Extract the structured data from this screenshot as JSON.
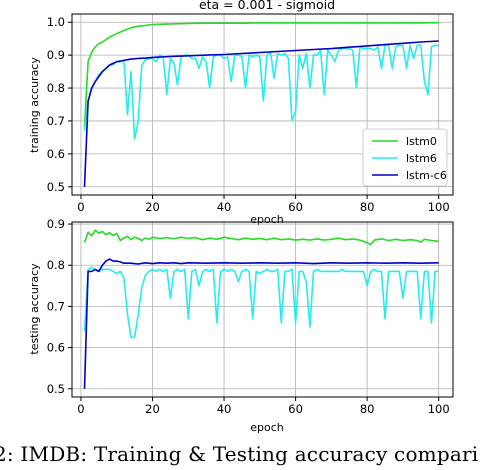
{
  "caption": "2: IMDB: Training & Testing accuracy compari",
  "chart_data": [
    {
      "type": "line",
      "title": "eta = 0.001 - sigmoid",
      "xlabel": "epoch",
      "ylabel": "training accuracy",
      "xlim": [
        -2.5,
        104
      ],
      "ylim": [
        0.475,
        1.025
      ],
      "xticks": [
        0,
        20,
        40,
        60,
        80,
        100
      ],
      "yticks": [
        0.5,
        0.6,
        0.7,
        0.8,
        0.9,
        1.0
      ],
      "ytick_labels": [
        "0.5",
        "0.6",
        "0.7",
        "0.8",
        "0.9",
        "1.0"
      ],
      "grid": true,
      "legend": "lower-right",
      "series": [
        {
          "name": "lstm0",
          "color": "#22dd22",
          "x": [
            1,
            2,
            3,
            4,
            5,
            6,
            8,
            10,
            12,
            14,
            16,
            18,
            20,
            25,
            30,
            35,
            40,
            45,
            50,
            55,
            60,
            65,
            70,
            75,
            80,
            85,
            90,
            95,
            100
          ],
          "y": [
            0.68,
            0.88,
            0.91,
            0.925,
            0.935,
            0.94,
            0.955,
            0.965,
            0.975,
            0.983,
            0.988,
            0.99,
            0.993,
            0.995,
            0.996,
            0.997,
            0.997,
            0.997,
            0.998,
            0.998,
            0.998,
            0.998,
            0.998,
            0.998,
            0.998,
            0.998,
            0.998,
            0.998,
            0.999
          ]
        },
        {
          "name": "lstm6",
          "color": "#22eeee",
          "x": [
            1,
            2,
            3,
            4,
            5,
            6,
            7,
            8,
            9,
            10,
            11,
            12,
            13,
            14,
            15,
            16,
            17,
            18,
            19,
            20,
            21,
            22,
            23,
            24,
            25,
            26,
            27,
            28,
            29,
            30,
            31,
            32,
            33,
            34,
            35,
            36,
            37,
            38,
            39,
            40,
            41,
            42,
            43,
            44,
            45,
            46,
            47,
            48,
            49,
            50,
            51,
            52,
            53,
            54,
            55,
            56,
            57,
            58,
            59,
            60,
            61,
            62,
            63,
            64,
            65,
            66,
            67,
            68,
            69,
            70,
            71,
            72,
            73,
            74,
            75,
            76,
            77,
            78,
            79,
            80,
            81,
            82,
            83,
            84,
            85,
            86,
            87,
            88,
            89,
            90,
            91,
            92,
            93,
            94,
            95,
            96,
            97,
            98,
            99,
            100
          ],
          "y": [
            0.67,
            0.76,
            0.8,
            0.82,
            0.84,
            0.85,
            0.86,
            0.87,
            0.87,
            0.88,
            0.88,
            0.885,
            0.72,
            0.85,
            0.645,
            0.7,
            0.87,
            0.885,
            0.89,
            0.89,
            0.88,
            0.9,
            0.895,
            0.78,
            0.89,
            0.875,
            0.81,
            0.895,
            0.9,
            0.9,
            0.89,
            0.89,
            0.86,
            0.895,
            0.88,
            0.8,
            0.895,
            0.9,
            0.9,
            0.89,
            0.895,
            0.82,
            0.9,
            0.9,
            0.895,
            0.8,
            0.9,
            0.895,
            0.9,
            0.895,
            0.76,
            0.9,
            0.91,
            0.83,
            0.905,
            0.9,
            0.905,
            0.89,
            0.7,
            0.73,
            0.9,
            0.86,
            0.905,
            0.8,
            0.9,
            0.9,
            0.915,
            0.78,
            0.915,
            0.9,
            0.88,
            0.915,
            0.92,
            0.92,
            0.92,
            0.915,
            0.8,
            0.925,
            0.92,
            0.92,
            0.92,
            0.915,
            0.925,
            0.86,
            0.93,
            0.93,
            0.86,
            0.925,
            0.93,
            0.93,
            0.86,
            0.93,
            0.89,
            0.93,
            0.93,
            0.82,
            0.78,
            0.925,
            0.93,
            0.93
          ]
        },
        {
          "name": "lstm-c6",
          "color": "#0000cc",
          "x": [
            1,
            2,
            3,
            4,
            5,
            6,
            7,
            8,
            9,
            10,
            11,
            12,
            13,
            14,
            15,
            16,
            18,
            20,
            25,
            30,
            35,
            40,
            45,
            50,
            55,
            60,
            65,
            70,
            75,
            80,
            85,
            90,
            95,
            100
          ],
          "y": [
            0.5,
            0.76,
            0.8,
            0.82,
            0.835,
            0.85,
            0.86,
            0.87,
            0.875,
            0.88,
            0.882,
            0.884,
            0.886,
            0.888,
            0.889,
            0.89,
            0.891,
            0.893,
            0.896,
            0.898,
            0.9,
            0.902,
            0.905,
            0.908,
            0.911,
            0.914,
            0.917,
            0.92,
            0.924,
            0.928,
            0.932,
            0.936,
            0.94,
            0.943
          ]
        }
      ]
    },
    {
      "type": "line",
      "title": "",
      "xlabel": "epoch",
      "ylabel": "testing accuracy",
      "xlim": [
        -2.5,
        104
      ],
      "ylim": [
        0.48,
        0.905
      ],
      "xticks": [
        0,
        20,
        40,
        60,
        80,
        100
      ],
      "yticks": [
        0.5,
        0.6,
        0.7,
        0.8,
        0.9
      ],
      "ytick_labels": [
        "0.5",
        "0.6",
        "0.7",
        "0.8",
        "0.9"
      ],
      "grid": true,
      "series": [
        {
          "name": "lstm0",
          "color": "#22dd22",
          "x": [
            1,
            2,
            3,
            4,
            5,
            6,
            7,
            8,
            9,
            10,
            11,
            12,
            13,
            14,
            15,
            16,
            17,
            18,
            19,
            20,
            22,
            24,
            26,
            28,
            30,
            32,
            34,
            36,
            38,
            40,
            42,
            44,
            46,
            48,
            50,
            52,
            54,
            56,
            58,
            60,
            62,
            64,
            66,
            68,
            70,
            72,
            74,
            76,
            78,
            80,
            81,
            82,
            84,
            86,
            88,
            90,
            92,
            94,
            95,
            96,
            98,
            100
          ],
          "y": [
            0.855,
            0.88,
            0.872,
            0.885,
            0.878,
            0.882,
            0.874,
            0.879,
            0.872,
            0.877,
            0.86,
            0.866,
            0.87,
            0.862,
            0.868,
            0.865,
            0.86,
            0.866,
            0.863,
            0.868,
            0.865,
            0.867,
            0.864,
            0.868,
            0.865,
            0.867,
            0.862,
            0.866,
            0.863,
            0.868,
            0.865,
            0.862,
            0.866,
            0.863,
            0.865,
            0.862,
            0.866,
            0.862,
            0.864,
            0.861,
            0.863,
            0.861,
            0.864,
            0.861,
            0.863,
            0.866,
            0.862,
            0.864,
            0.861,
            0.855,
            0.85,
            0.861,
            0.864,
            0.86,
            0.863,
            0.86,
            0.862,
            0.86,
            0.856,
            0.863,
            0.86,
            0.858
          ]
        },
        {
          "name": "lstm6",
          "color": "#22eeee",
          "x": [
            1,
            2,
            3,
            4,
            5,
            6,
            7,
            8,
            9,
            10,
            11,
            12,
            13,
            14,
            15,
            16,
            17,
            18,
            19,
            20,
            21,
            22,
            23,
            24,
            25,
            26,
            27,
            28,
            29,
            30,
            31,
            32,
            33,
            34,
            35,
            36,
            37,
            38,
            39,
            40,
            41,
            42,
            43,
            44,
            45,
            46,
            47,
            48,
            49,
            50,
            51,
            52,
            53,
            54,
            55,
            56,
            57,
            58,
            59,
            60,
            61,
            62,
            63,
            64,
            65,
            66,
            67,
            68,
            69,
            70,
            71,
            72,
            73,
            74,
            75,
            76,
            77,
            78,
            79,
            80,
            81,
            82,
            83,
            84,
            85,
            86,
            87,
            88,
            89,
            90,
            91,
            92,
            93,
            94,
            95,
            96,
            97,
            98,
            99,
            100
          ],
          "y": [
            0.64,
            0.79,
            0.795,
            0.79,
            0.785,
            0.79,
            0.79,
            0.79,
            0.785,
            0.78,
            0.785,
            0.77,
            0.68,
            0.625,
            0.625,
            0.68,
            0.745,
            0.775,
            0.785,
            0.79,
            0.785,
            0.79,
            0.785,
            0.79,
            0.72,
            0.785,
            0.79,
            0.785,
            0.79,
            0.67,
            0.785,
            0.79,
            0.75,
            0.785,
            0.79,
            0.785,
            0.79,
            0.66,
            0.785,
            0.79,
            0.785,
            0.79,
            0.785,
            0.76,
            0.785,
            0.79,
            0.785,
            0.67,
            0.785,
            0.78,
            0.785,
            0.79,
            0.785,
            0.785,
            0.79,
            0.66,
            0.785,
            0.785,
            0.79,
            0.66,
            0.785,
            0.785,
            0.76,
            0.65,
            0.785,
            0.79,
            0.785,
            0.785,
            0.785,
            0.785,
            0.785,
            0.785,
            0.79,
            0.785,
            0.785,
            0.785,
            0.785,
            0.785,
            0.785,
            0.75,
            0.785,
            0.79,
            0.785,
            0.785,
            0.67,
            0.785,
            0.785,
            0.785,
            0.785,
            0.72,
            0.785,
            0.785,
            0.785,
            0.785,
            0.67,
            0.785,
            0.785,
            0.66,
            0.785,
            0.785
          ]
        },
        {
          "name": "lstm-c6",
          "color": "#0000cc",
          "x": [
            1,
            2,
            3,
            4,
            5,
            6,
            7,
            8,
            9,
            10,
            11,
            12,
            14,
            16,
            18,
            20,
            22,
            24,
            26,
            28,
            30,
            35,
            40,
            45,
            50,
            55,
            60,
            65,
            70,
            75,
            80,
            85,
            90,
            95,
            100
          ],
          "y": [
            0.5,
            0.785,
            0.785,
            0.79,
            0.785,
            0.8,
            0.81,
            0.815,
            0.81,
            0.81,
            0.808,
            0.805,
            0.805,
            0.803,
            0.806,
            0.804,
            0.806,
            0.805,
            0.806,
            0.804,
            0.806,
            0.805,
            0.806,
            0.805,
            0.806,
            0.805,
            0.806,
            0.804,
            0.806,
            0.805,
            0.806,
            0.805,
            0.806,
            0.805,
            0.806
          ]
        }
      ]
    }
  ]
}
